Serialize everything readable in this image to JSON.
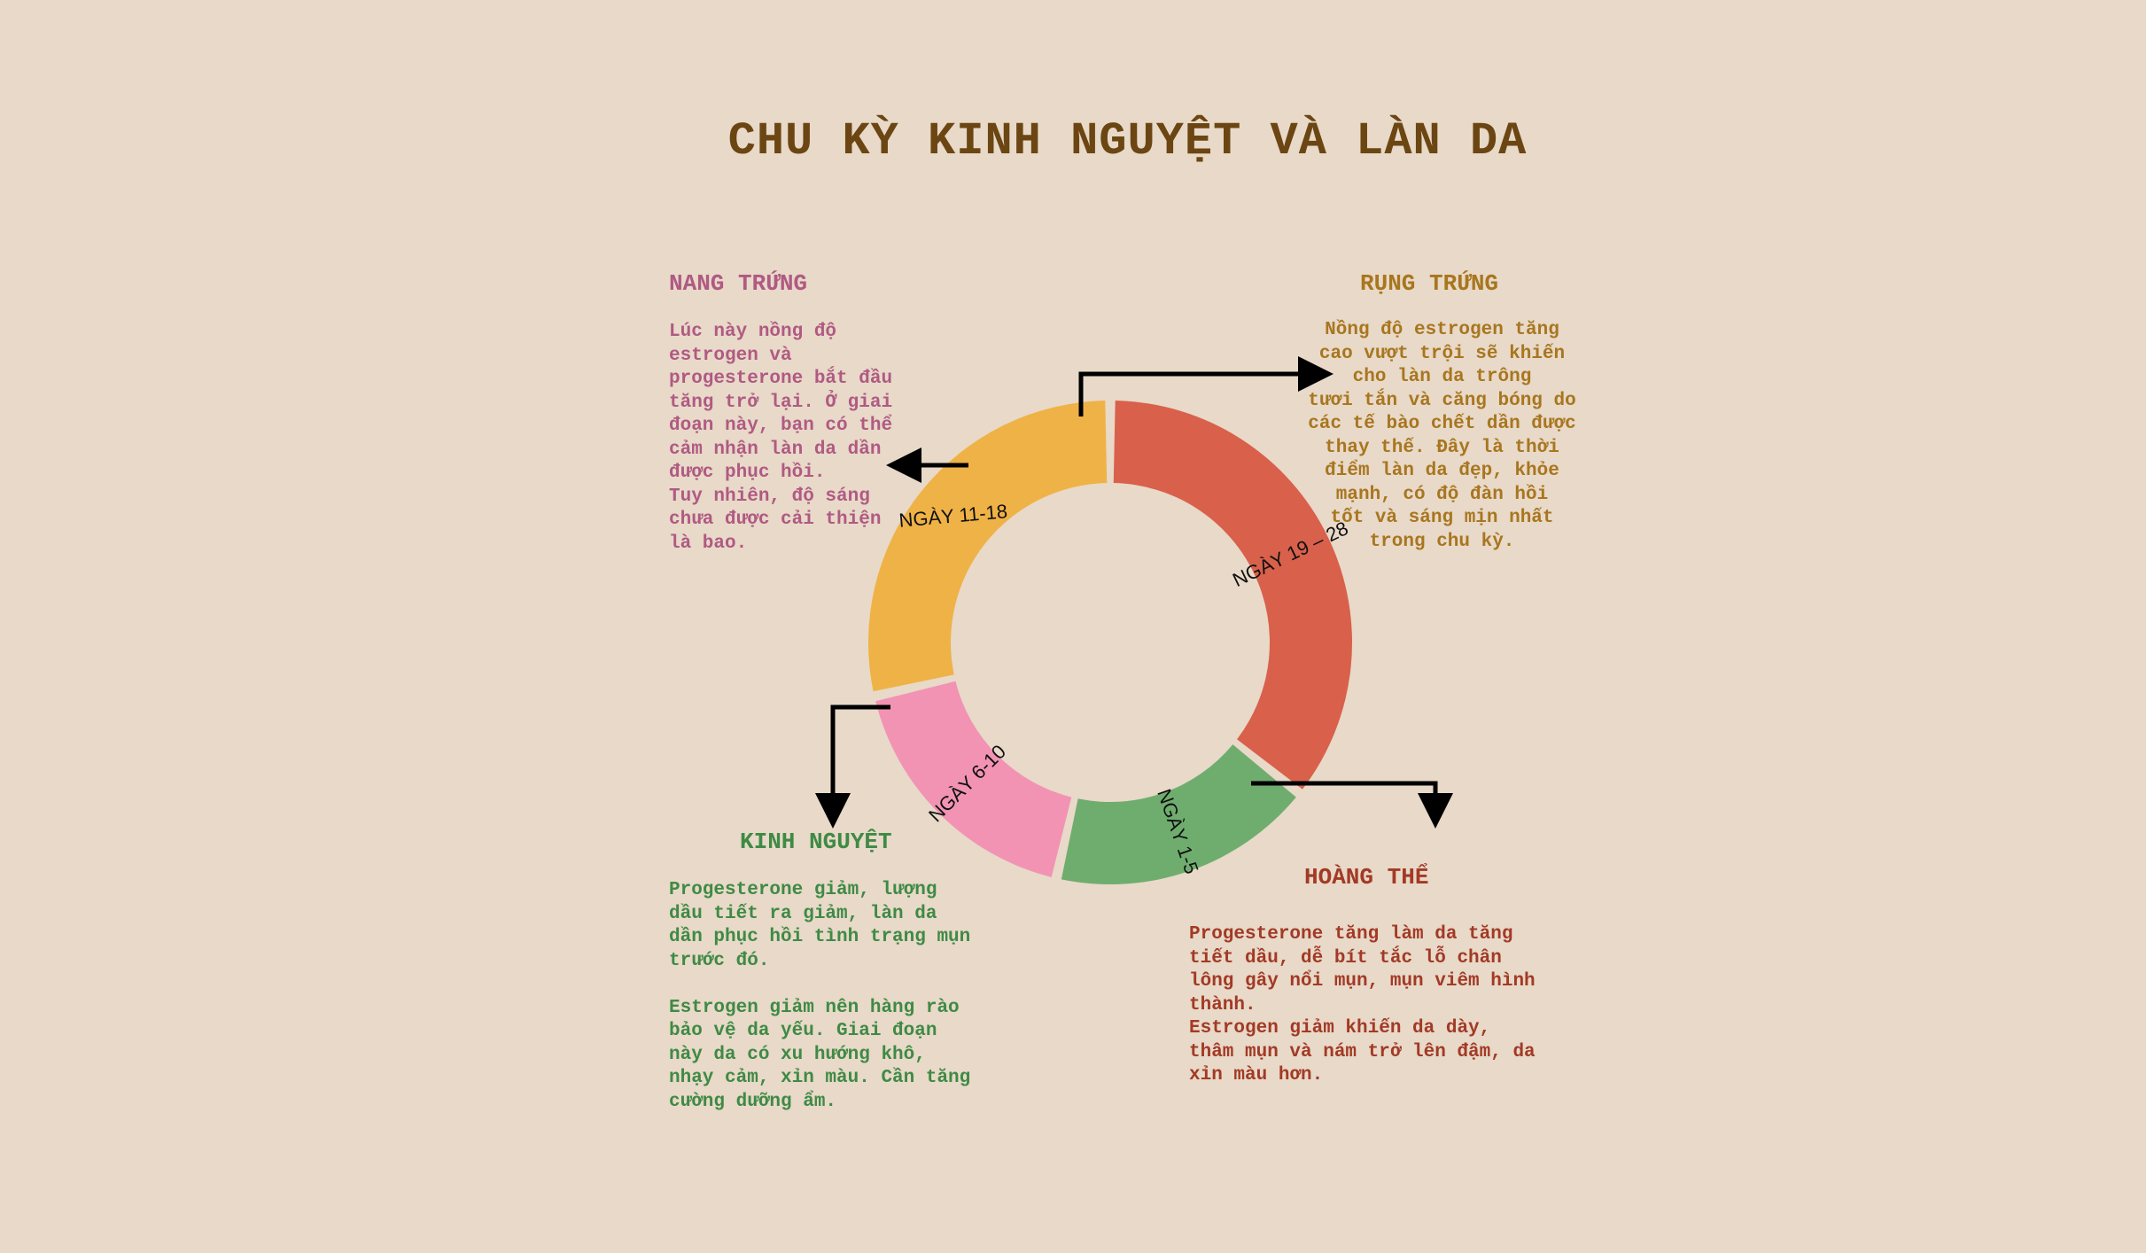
{
  "title": "CHU KỲ KINH NGUYỆT VÀ LÀN DA",
  "colors": {
    "background": "#e8d9c8",
    "title": "#6b4613",
    "menstrual": "#6fad6f",
    "follicular": "#f293b4",
    "ovulation": "#efb246",
    "luteal": "#d9604b"
  },
  "cycle": {
    "segments": [
      {
        "label": "NGÀY 1-5",
        "days": 5
      },
      {
        "label": "NGÀY 6-10",
        "days": 5
      },
      {
        "label": "NGÀY 11-18",
        "days": 8
      },
      {
        "label": "NGÀY 19 – 28",
        "days": 10
      }
    ]
  },
  "phases": {
    "follicular": {
      "title": "NANG TRỨNG",
      "text": "Lúc này nồng độ\nestrogen và\nprogesterone bắt đầu\ntăng trở lại. Ở giai\nđoạn này, bạn có thể\ncảm nhận làn da dần\nđược phục hồi.\nTuy nhiên, độ sáng\nchưa được cải thiện\nlà bao."
    },
    "ovulation": {
      "title": "RỤNG TRỨNG",
      "text": "Nồng độ estrogen tăng\ncao vượt trội sẽ khiến\ncho làn da trông\ntươi tắn và căng bóng do\ncác tế bào chết dần được\nthay thế. Đây là thời\nđiểm làn da đẹp, khỏe\nmạnh, có độ đàn hồi\ntốt và sáng mịn nhất\ntrong chu kỳ."
    },
    "menstrual": {
      "title": "KINH NGUYỆT",
      "text": "Progesterone giảm, lượng\ndầu tiết ra giảm, làn da\ndần phục hồi tình trạng mụn\ntrước đó.\n\nEstrogen giảm nên hàng rào\nbảo vệ da yếu. Giai đoạn\nnày da có xu hướng khô,\nnhạy cảm, xỉn màu. Cần tăng\ncường dưỡng ẩm."
    },
    "luteal": {
      "title": "HOÀNG THỂ",
      "text": "Progesterone tăng làm da tăng\ntiết dầu, dễ bít tắc lỗ chân\nlông gây nổi mụn, mụn viêm hình\nthành.\nEstrogen giảm khiến da dày,\nthâm mụn và nám trở lên đậm, da\nxỉn màu hơn."
    }
  }
}
